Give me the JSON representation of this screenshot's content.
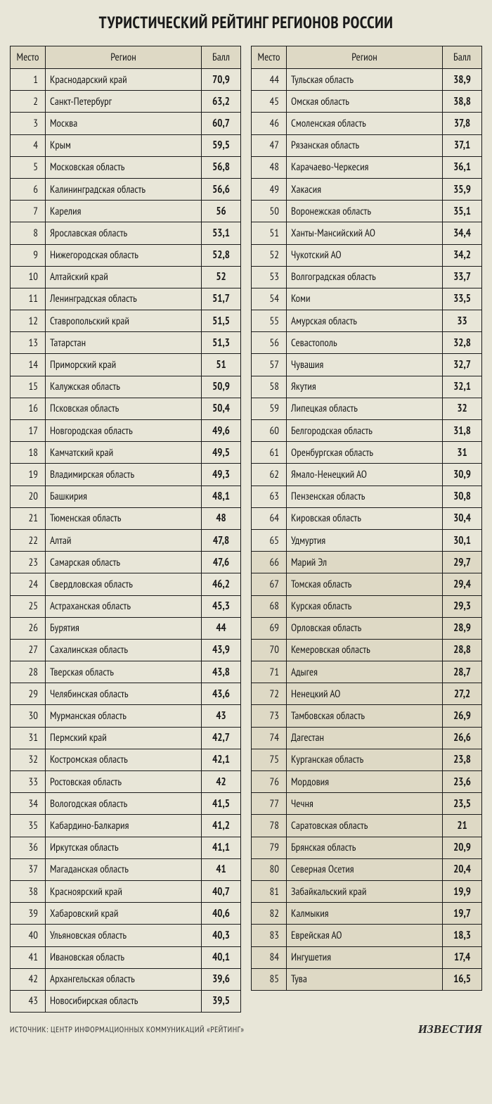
{
  "title": "ТУРИСТИЧЕСКИЙ РЕЙТИНГ РЕГИОНОВ РОССИИ",
  "headers": {
    "rank": "Место",
    "region": "Регион",
    "score": "Балл"
  },
  "shade_start_rank": 66,
  "colors": {
    "page_bg": "#e8e6d8",
    "header_bg": "#ded9c5",
    "shaded_row_bg": "#ded9c5",
    "border": "#1a1a1a",
    "text": "#1a1a1a"
  },
  "rowsLeft": [
    {
      "rank": "1",
      "region": "Краснодарский край",
      "score": "70,9"
    },
    {
      "rank": "2",
      "region": "Санкт-Петербург",
      "score": "63,2"
    },
    {
      "rank": "3",
      "region": "Москва",
      "score": "60,7"
    },
    {
      "rank": "4",
      "region": "Крым",
      "score": "59,5"
    },
    {
      "rank": "5",
      "region": "Московская область",
      "score": "56,8"
    },
    {
      "rank": "6",
      "region": "Калининградская область",
      "score": "56,6"
    },
    {
      "rank": "7",
      "region": "Карелия",
      "score": "56"
    },
    {
      "rank": "8",
      "region": "Ярославская область",
      "score": "53,1"
    },
    {
      "rank": "9",
      "region": "Нижегородская область",
      "score": "52,8"
    },
    {
      "rank": "10",
      "region": "Алтайский край",
      "score": "52"
    },
    {
      "rank": "11",
      "region": "Ленинградская область",
      "score": "51,7"
    },
    {
      "rank": "12",
      "region": "Ставропольский край",
      "score": "51,5"
    },
    {
      "rank": "13",
      "region": "Татарстан",
      "score": "51,3"
    },
    {
      "rank": "14",
      "region": "Приморский край",
      "score": "51"
    },
    {
      "rank": "15",
      "region": "Калужская область",
      "score": "50,9"
    },
    {
      "rank": "16",
      "region": "Псковская область",
      "score": "50,4"
    },
    {
      "rank": "17",
      "region": "Новгородская область",
      "score": "49,6"
    },
    {
      "rank": "18",
      "region": "Камчатский край",
      "score": "49,5"
    },
    {
      "rank": "19",
      "region": "Владимирская область",
      "score": "49,3"
    },
    {
      "rank": "20",
      "region": "Башкирия",
      "score": "48,1"
    },
    {
      "rank": "21",
      "region": "Тюменская область",
      "score": "48"
    },
    {
      "rank": "22",
      "region": "Алтай",
      "score": "47,8"
    },
    {
      "rank": "23",
      "region": "Самарская область",
      "score": "47,6"
    },
    {
      "rank": "24",
      "region": "Свердловская область",
      "score": "46,2"
    },
    {
      "rank": "25",
      "region": "Астраханская область",
      "score": "45,3"
    },
    {
      "rank": "26",
      "region": "Бурятия",
      "score": "44"
    },
    {
      "rank": "27",
      "region": "Сахалинская область",
      "score": "43,9"
    },
    {
      "rank": "28",
      "region": "Тверская область",
      "score": "43,8"
    },
    {
      "rank": "29",
      "region": "Челябинская область",
      "score": "43,6"
    },
    {
      "rank": "30",
      "region": "Мурманская область",
      "score": "43"
    },
    {
      "rank": "31",
      "region": "Пермский край",
      "score": "42,7"
    },
    {
      "rank": "32",
      "region": "Костромская область",
      "score": "42,1"
    },
    {
      "rank": "33",
      "region": "Ростовская область",
      "score": "42"
    },
    {
      "rank": "34",
      "region": "Вологодская область",
      "score": "41,5"
    },
    {
      "rank": "35",
      "region": "Кабардино-Балкария",
      "score": "41,2"
    },
    {
      "rank": "36",
      "region": "Иркутская область",
      "score": "41,1"
    },
    {
      "rank": "37",
      "region": "Магаданская область",
      "score": "41"
    },
    {
      "rank": "38",
      "region": "Красноярский край",
      "score": "40,7"
    },
    {
      "rank": "39",
      "region": "Хабаровский край",
      "score": "40,6"
    },
    {
      "rank": "40",
      "region": "Ульяновская область",
      "score": "40,3"
    },
    {
      "rank": "41",
      "region": "Ивановская область",
      "score": "40,1"
    },
    {
      "rank": "42",
      "region": "Архангельская область",
      "score": "39,6"
    },
    {
      "rank": "43",
      "region": "Новосибирская область",
      "score": "39,5"
    }
  ],
  "rowsRight": [
    {
      "rank": "44",
      "region": "Тульская область",
      "score": "38,9"
    },
    {
      "rank": "45",
      "region": "Омская область",
      "score": "38,8"
    },
    {
      "rank": "46",
      "region": "Смоленская область",
      "score": "37,8"
    },
    {
      "rank": "47",
      "region": "Рязанская область",
      "score": "37,1"
    },
    {
      "rank": "48",
      "region": "Карачаево-Черкесия",
      "score": "36,1"
    },
    {
      "rank": "49",
      "region": "Хакасия",
      "score": "35,9"
    },
    {
      "rank": "50",
      "region": "Воронежская область",
      "score": "35,1"
    },
    {
      "rank": "51",
      "region": "Ханты-Мансийский АО",
      "score": "34,4"
    },
    {
      "rank": "52",
      "region": "Чукотский АО",
      "score": "34,2"
    },
    {
      "rank": "53",
      "region": "Волгоградская область",
      "score": "33,7"
    },
    {
      "rank": "54",
      "region": "Коми",
      "score": "33,5"
    },
    {
      "rank": "55",
      "region": "Амурская область",
      "score": "33"
    },
    {
      "rank": "56",
      "region": "Севастополь",
      "score": "32,8"
    },
    {
      "rank": "57",
      "region": "Чувашия",
      "score": "32,7"
    },
    {
      "rank": "58",
      "region": "Якутия",
      "score": "32,1"
    },
    {
      "rank": "59",
      "region": "Липецкая область",
      "score": "32"
    },
    {
      "rank": "60",
      "region": "Белгородская область",
      "score": "31,8"
    },
    {
      "rank": "61",
      "region": "Оренбургская область",
      "score": "31"
    },
    {
      "rank": "62",
      "region": "Ямало-Ненецкий АО",
      "score": "30,9"
    },
    {
      "rank": "63",
      "region": "Пензенская область",
      "score": "30,8"
    },
    {
      "rank": "64",
      "region": "Кировская область",
      "score": "30,4"
    },
    {
      "rank": "65",
      "region": "Удмуртия",
      "score": "30,1"
    },
    {
      "rank": "66",
      "region": "Марий Эл",
      "score": "29,7"
    },
    {
      "rank": "67",
      "region": "Томская область",
      "score": "29,4"
    },
    {
      "rank": "68",
      "region": "Курская область",
      "score": "29,3"
    },
    {
      "rank": "69",
      "region": "Орловская область",
      "score": "28,9"
    },
    {
      "rank": "70",
      "region": "Кемеровская область",
      "score": "28,8"
    },
    {
      "rank": "71",
      "region": "Адыгея",
      "score": "28,7"
    },
    {
      "rank": "72",
      "region": "Ненецкий АО",
      "score": "27,2"
    },
    {
      "rank": "73",
      "region": "Тамбовская область",
      "score": "26,9"
    },
    {
      "rank": "74",
      "region": "Дагестан",
      "score": "26,6"
    },
    {
      "rank": "75",
      "region": "Курганская область",
      "score": "23,8"
    },
    {
      "rank": "76",
      "region": "Мордовия",
      "score": "23,6"
    },
    {
      "rank": "77",
      "region": "Чечня",
      "score": "23,5"
    },
    {
      "rank": "78",
      "region": "Саратовская область",
      "score": "21"
    },
    {
      "rank": "79",
      "region": "Брянская область",
      "score": "20,9"
    },
    {
      "rank": "80",
      "region": "Северная Осетия",
      "score": "20,4"
    },
    {
      "rank": "81",
      "region": "Забайкальский край",
      "score": "19,9"
    },
    {
      "rank": "82",
      "region": "Калмыкия",
      "score": "19,7"
    },
    {
      "rank": "83",
      "region": "Еврейская АО",
      "score": "18,3"
    },
    {
      "rank": "84",
      "region": "Ингушетия",
      "score": "17,4"
    },
    {
      "rank": "85",
      "region": "Тува",
      "score": "16,5"
    }
  ],
  "footer": {
    "source": "ИСТОЧНИК: ЦЕНТР ИНФОРМАЦИОННЫХ КОММУНИКАЦИЙ «РЕЙТИНГ»",
    "logo": "ИЗВЕСТИЯ"
  }
}
